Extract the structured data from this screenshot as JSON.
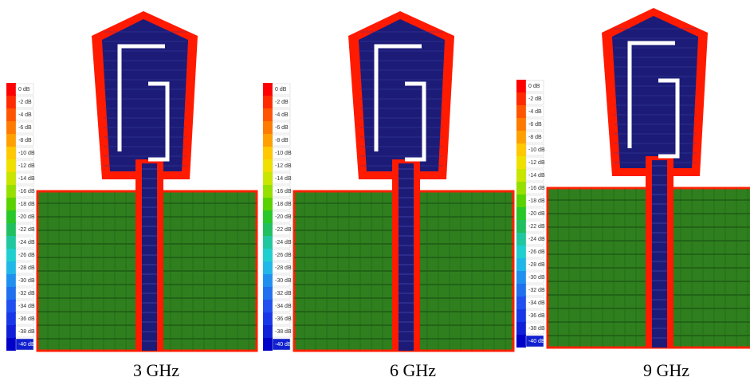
{
  "panels": [
    {
      "caption": "3 GHz",
      "legend": [
        "0 dB",
        "-2 dB",
        "-4 dB",
        "-6 dB",
        "-8 dB",
        "-10 dB",
        "-12 dB",
        "-14 dB",
        "-16 dB",
        "-18 dB",
        "-20 dB",
        "-22 dB",
        "-24 dB",
        "-26 dB",
        "-28 dB",
        "-30 dB",
        "-32 dB",
        "-34 dB",
        "-36 dB",
        "-38 dB",
        "-40 dB"
      ]
    },
    {
      "caption": "6 GHz",
      "legend": [
        "0 dB",
        "-2 dB",
        "-4 dB",
        "-6 dB",
        "-8 dB",
        "-10 dB",
        "-12 dB",
        "-14 dB",
        "-16 dB",
        "-18 dB",
        "-20 dB",
        "-22 dB",
        "-24 dB",
        "-26 dB",
        "-28 dB",
        "-30 dB",
        "-32 dB",
        "-34 dB",
        "-36 dB",
        "-38 dB",
        "-40 dB"
      ]
    },
    {
      "caption": "9 GHz",
      "legend": [
        "0 dB",
        "-2 dB",
        "-4 dB",
        "-6 dB",
        "-8 dB",
        "-10 dB",
        "-12 dB",
        "-14 dB",
        "-16 dB",
        "-18 dB",
        "-20 dB",
        "-22 dB",
        "-24 dB",
        "-26 dB",
        "-28 dB",
        "-30 dB",
        "-32 dB",
        "-34 dB",
        "-36 dB",
        "-38 dB",
        "-40 dB"
      ]
    }
  ]
}
